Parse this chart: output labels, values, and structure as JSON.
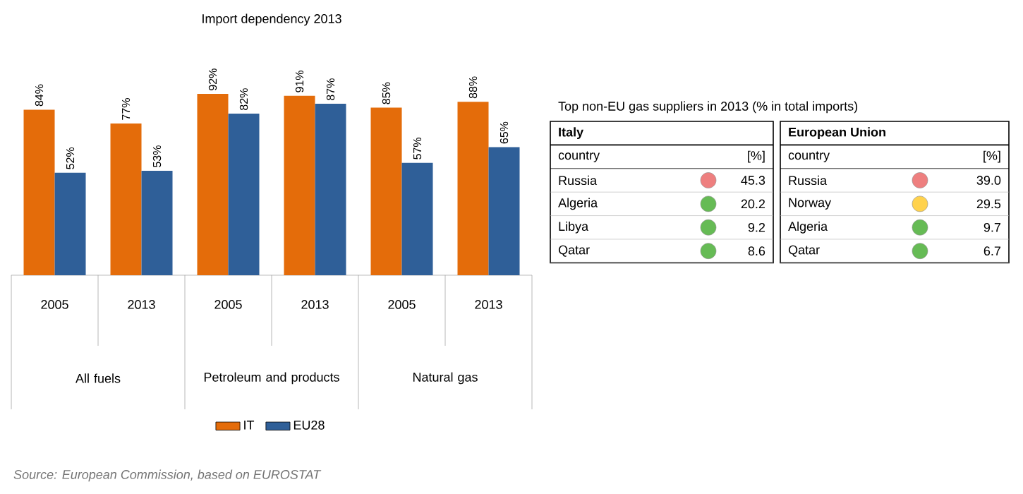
{
  "chart_data": [
    {
      "type": "bar",
      "title": "Import dependency 2013",
      "categories": [
        "2005",
        "2013",
        "2005",
        "2013",
        "2005",
        "2013"
      ],
      "series": [
        {
          "name": "IT",
          "color": "#e46c0a",
          "values": [
            84,
            77,
            92,
            91,
            85,
            88
          ],
          "value_labels": [
            "84%",
            "77%",
            "92%",
            "91%",
            "85%",
            "88%"
          ]
        },
        {
          "name": "EU28",
          "color": "#2f5f98",
          "values": [
            52,
            53,
            82,
            87,
            57,
            65
          ],
          "value_labels": [
            "52%",
            "53%",
            "82%",
            "87%",
            "57%",
            "65%"
          ]
        }
      ],
      "annotations": [
        "Source: European Commission, based on EUROSTAT",
        "All fuels",
        "Petroleum and products",
        "Natural gas"
      ],
      "legend": "bottom"
    },
    {
      "type": "other",
      "title": "Top non-EU gas suppliers in 2013 (% in total imports)",
      "annotations": [
        "Italy",
        "country",
        "[%]",
        "Russia",
        "45.3",
        "Algeria",
        "20.2",
        "Libya",
        "9.2",
        "Qatar",
        "8.6",
        "European Union",
        "country",
        "[%]",
        "Russia",
        "39.0",
        "Norway",
        "29.5",
        "Algeria",
        "9.7",
        "Qatar",
        "6.7"
      ],
      "colors": [
        "#ee7f7f",
        "#66bb55",
        "#66bb55",
        "#66bb55",
        "#ee7f7f",
        "#ffd24d",
        "#66bb55",
        "#66bb55"
      ]
    }
  ]
}
